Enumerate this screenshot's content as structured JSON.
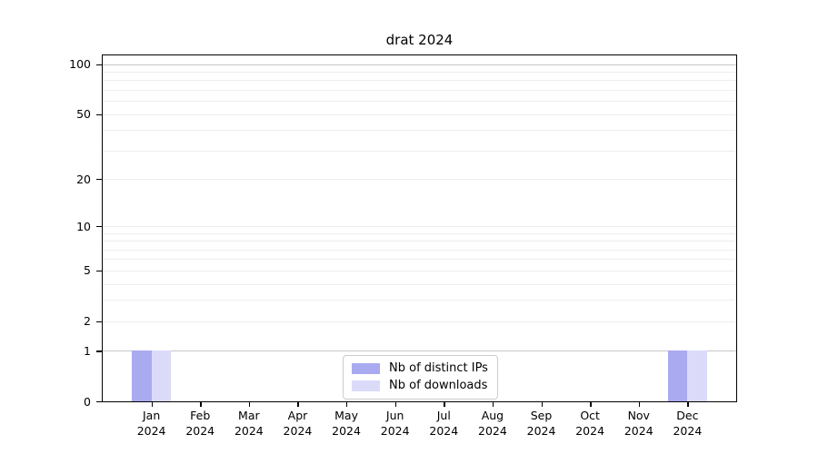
{
  "window": {
    "background": "#ffffff"
  },
  "chart_data": {
    "type": "bar",
    "title": "drat 2024",
    "categories": [
      "Jan",
      "Feb",
      "Mar",
      "Apr",
      "May",
      "Jun",
      "Jul",
      "Aug",
      "Sep",
      "Oct",
      "Nov",
      "Dec"
    ],
    "year_suffix": "2024",
    "series": [
      {
        "name": "Nb of distinct IPs",
        "color": "#aaaaf0",
        "values": [
          1,
          0,
          0,
          0,
          0,
          0,
          0,
          0,
          0,
          0,
          0,
          1
        ]
      },
      {
        "name": "Nb of downloads",
        "color": "#dbdbf9",
        "values": [
          1,
          0,
          0,
          0,
          0,
          0,
          0,
          0,
          0,
          0,
          0,
          1
        ]
      }
    ],
    "yscale": "log1p",
    "ylim": [
      0,
      113
    ],
    "yticks": [
      0,
      1,
      2,
      5,
      10,
      20,
      50,
      100
    ],
    "grid": {
      "major_values": [
        1,
        100
      ],
      "minor_values": [
        2,
        3,
        4,
        5,
        6,
        7,
        8,
        9,
        10,
        20,
        30,
        40,
        50,
        60,
        70,
        80,
        90
      ],
      "major_color": "#c6c6c6",
      "minor_color": "#ededed"
    },
    "bar_group_width": 0.8,
    "legend_position": "lower center",
    "axis_color": "#000000"
  }
}
